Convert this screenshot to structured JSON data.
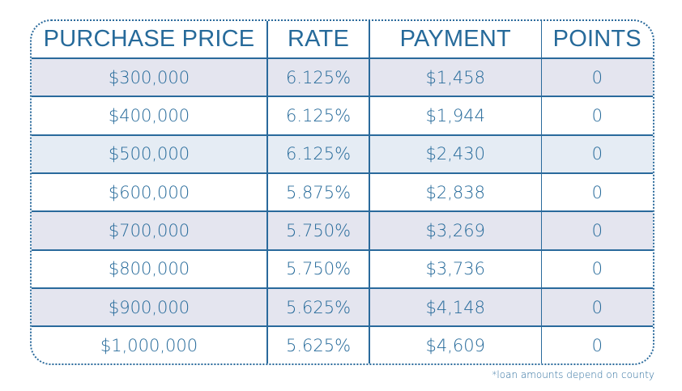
{
  "table": {
    "headers": [
      "PURCHASE PRICE",
      "RATE",
      "PAYMENT",
      "POINTS"
    ],
    "rows": [
      [
        "$300,000",
        "6.125%",
        "$1,458",
        "0"
      ],
      [
        "$400,000",
        "6.125%",
        "$1,944",
        "0"
      ],
      [
        "$500,000",
        "6.125%",
        "$2,430",
        "0"
      ],
      [
        "$600,000",
        "5.875%",
        "$2,838",
        "0"
      ],
      [
        "$700,000",
        "5.750%",
        "$3,269",
        "0"
      ],
      [
        "$800,000",
        "5.750%",
        "$3,736",
        "0"
      ],
      [
        "$900,000",
        "5.625%",
        "$4,148",
        "0"
      ],
      [
        "$1,000,000",
        "5.625%",
        "$4,609",
        "0"
      ]
    ]
  },
  "footnote": "*loan amounts depend on county",
  "colors": {
    "text": "#266a9a",
    "border": "#2a6a9c",
    "row_shade_gray": "#e4e5ef",
    "row_shade_blue": "#e5ecf4",
    "row_plain": "#ffffff"
  }
}
